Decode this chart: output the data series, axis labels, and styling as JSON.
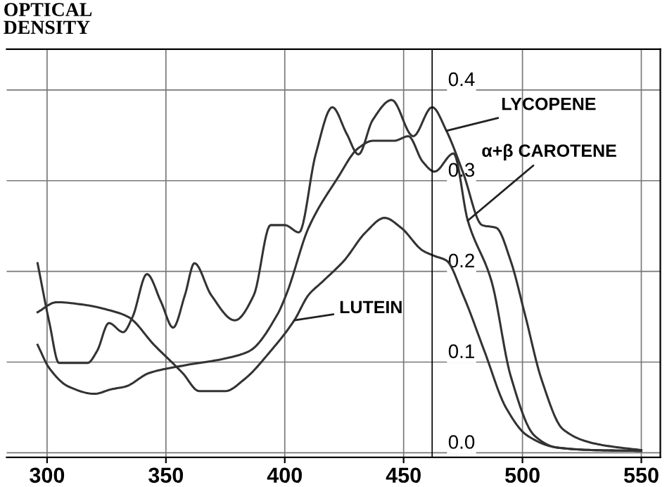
{
  "chart_data": {
    "type": "line",
    "ylabel": "OPTICAL DENSITY",
    "x": [
      296,
      301,
      305,
      317,
      321,
      326,
      332,
      336,
      342,
      348,
      353,
      358,
      362,
      369,
      379,
      387,
      394,
      400,
      406,
      413,
      420,
      426,
      431,
      437,
      445,
      454,
      462,
      468,
      475,
      483,
      489,
      495,
      501,
      508,
      517,
      529,
      540,
      550
    ],
    "series": [
      {
        "color": "#333333",
        "values": [
          0.209,
          0.143,
          0.099,
          0.099,
          0.112,
          0.143,
          0.133,
          0.15,
          0.197,
          0.166,
          0.138,
          0.174,
          0.209,
          0.174,
          0.146,
          0.174,
          0.251,
          0.251,
          0.243,
          0.329,
          0.381,
          0.352,
          0.329,
          0.367,
          0.389,
          0.349,
          0.381,
          0.355,
          0.309,
          0.251,
          0.248,
          0.212,
          0.153,
          0.081,
          0.026,
          0.011,
          0.006,
          0.003
        ]
      },
      {
        "color": "#333333",
        "x": [
          296,
          301,
          309,
          320,
          327,
          333,
          343,
          357,
          375,
          385,
          397,
          401,
          410,
          422,
          431,
          437,
          446,
          452,
          458,
          463,
          471,
          477,
          487,
          495,
          505,
          514,
          529,
          550
        ],
        "values": [
          0.119,
          0.093,
          0.073,
          0.065,
          0.07,
          0.073,
          0.088,
          0.096,
          0.104,
          0.112,
          0.153,
          0.177,
          0.248,
          0.302,
          0.336,
          0.344,
          0.344,
          0.349,
          0.321,
          0.31,
          0.33,
          0.256,
          0.189,
          0.085,
          0.019,
          0.006,
          0.003,
          0.002
        ]
      },
      {
        "color": "#333333",
        "x": [
          296,
          304,
          316,
          325,
          334,
          345,
          357,
          364,
          375,
          383,
          394,
          404,
          410,
          416,
          425,
          434,
          442,
          449,
          458,
          463,
          468,
          475,
          484,
          493,
          502,
          514,
          529,
          550
        ],
        "values": [
          0.155,
          0.166,
          0.163,
          0.158,
          0.15,
          0.119,
          0.088,
          0.068,
          0.068,
          0.081,
          0.112,
          0.146,
          0.174,
          0.189,
          0.212,
          0.243,
          0.259,
          0.248,
          0.223,
          0.217,
          0.212,
          0.174,
          0.112,
          0.05,
          0.019,
          0.006,
          0.003,
          0.002
        ]
      }
    ],
    "annotations": [
      {
        "text": "LYCOPENE",
        "x": 468,
        "y": 0.355
      },
      {
        "text": "α+β CAROTENE",
        "x": 477,
        "y": 0.256
      },
      {
        "text": "LUTEIN",
        "x": 404,
        "y": 0.146
      }
    ],
    "xlim": [
      283,
      558
    ],
    "xticks": [
      300,
      350,
      400,
      450,
      500,
      550
    ],
    "ylim": [
      -0.005,
      0.445
    ],
    "yticks": [
      {
        "value": 0,
        "label": "0.0"
      },
      0.1,
      0.2,
      0.3,
      0.4
    ],
    "grid": true
  }
}
